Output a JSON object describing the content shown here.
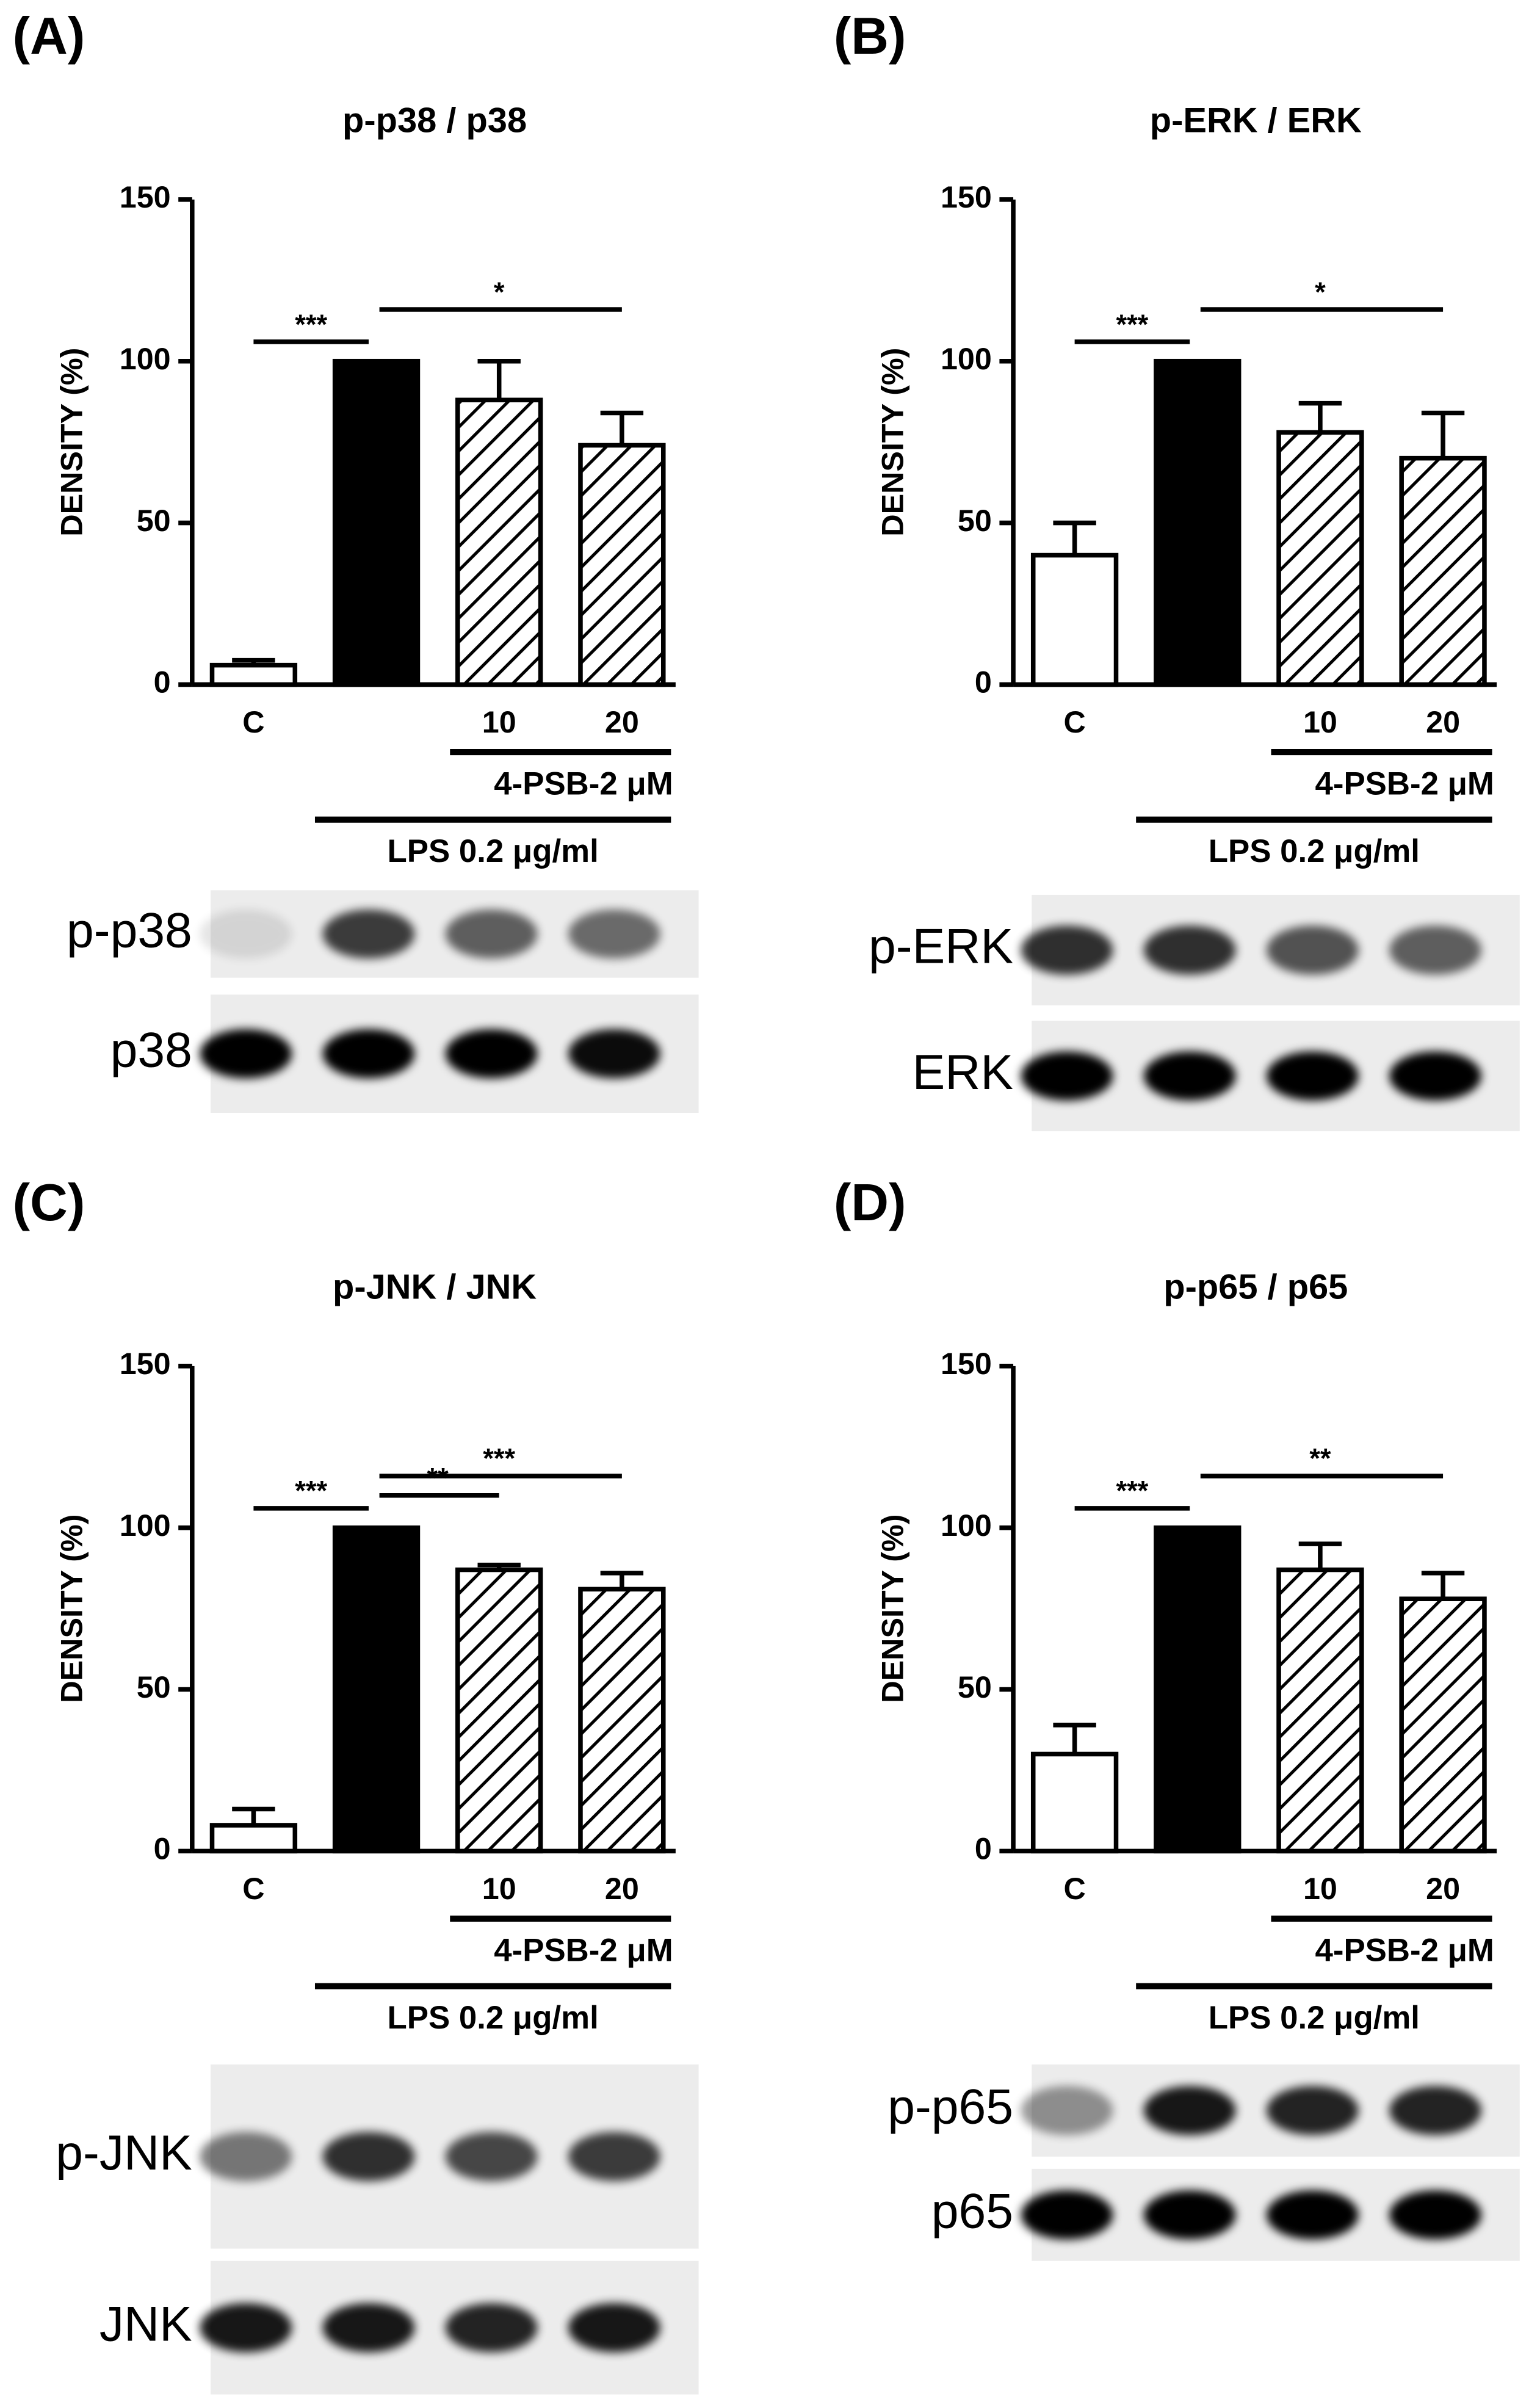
{
  "chart_data": [
    {
      "type": "bar",
      "panel": "(A)",
      "title": "p-p38 / p38",
      "ylabel": "DENSITY (%)",
      "categories": [
        "C",
        null,
        "10",
        "20"
      ],
      "values": [
        6,
        100,
        88,
        74
      ],
      "errors": [
        1.5,
        null,
        12,
        10
      ],
      "bar_styles": [
        "open",
        "solid",
        "hatch",
        "hatch"
      ],
      "ylim": [
        0,
        150
      ],
      "yticks": [
        0,
        50,
        100,
        150
      ],
      "groups": [
        {
          "label": "4-PSB-2 μM",
          "from": 2,
          "to": 3
        },
        {
          "label": "LPS 0.2 μg/ml",
          "from": 1,
          "to": 3
        }
      ],
      "annotations": [
        {
          "text": "***",
          "from": 0,
          "to": 1
        },
        {
          "text": "*",
          "from": 1,
          "to": 3
        }
      ],
      "blots": [
        "p-p38",
        "p38"
      ]
    },
    {
      "type": "bar",
      "panel": "(B)",
      "title": "p-ERK / ERK",
      "ylabel": "DENSITY (%)",
      "categories": [
        "C",
        null,
        "10",
        "20"
      ],
      "values": [
        40,
        100,
        78,
        70
      ],
      "errors": [
        10,
        null,
        9,
        14
      ],
      "bar_styles": [
        "open",
        "solid",
        "hatch",
        "hatch"
      ],
      "ylim": [
        0,
        150
      ],
      "yticks": [
        0,
        50,
        100,
        150
      ],
      "groups": [
        {
          "label": "4-PSB-2 μM",
          "from": 2,
          "to": 3
        },
        {
          "label": "LPS 0.2 μg/ml",
          "from": 1,
          "to": 3
        }
      ],
      "annotations": [
        {
          "text": "***",
          "from": 0,
          "to": 1
        },
        {
          "text": "*",
          "from": 1,
          "to": 3
        }
      ],
      "blots": [
        "p-ERK",
        "ERK"
      ]
    },
    {
      "type": "bar",
      "panel": "(C)",
      "title": "p-JNK / JNK",
      "ylabel": "DENSITY (%)",
      "categories": [
        "C",
        null,
        "10",
        "20"
      ],
      "values": [
        8,
        100,
        87,
        81
      ],
      "errors": [
        5,
        null,
        1.5,
        5
      ],
      "bar_styles": [
        "open",
        "solid",
        "hatch",
        "hatch"
      ],
      "ylim": [
        0,
        150
      ],
      "yticks": [
        0,
        50,
        100,
        150
      ],
      "groups": [
        {
          "label": "4-PSB-2 μM",
          "from": 2,
          "to": 3
        },
        {
          "label": "LPS 0.2 μg/ml",
          "from": 1,
          "to": 3
        }
      ],
      "annotations": [
        {
          "text": "***",
          "from": 0,
          "to": 1
        },
        {
          "text": "**",
          "from": 1,
          "to": 2
        },
        {
          "text": "***",
          "from": 1,
          "to": 3
        }
      ],
      "blots": [
        "p-JNK",
        "JNK"
      ]
    },
    {
      "type": "bar",
      "panel": "(D)",
      "title": "p-p65 / p65",
      "ylabel": "DENSITY (%)",
      "categories": [
        "C",
        null,
        "10",
        "20"
      ],
      "values": [
        30,
        100,
        87,
        78
      ],
      "errors": [
        9,
        null,
        8,
        8
      ],
      "bar_styles": [
        "open",
        "solid",
        "hatch",
        "hatch"
      ],
      "ylim": [
        0,
        150
      ],
      "yticks": [
        0,
        50,
        100,
        150
      ],
      "groups": [
        {
          "label": "4-PSB-2 μM",
          "from": 2,
          "to": 3
        },
        {
          "label": "LPS 0.2 μg/ml",
          "from": 1,
          "to": 3
        }
      ],
      "annotations": [
        {
          "text": "***",
          "from": 0,
          "to": 1
        },
        {
          "text": "**",
          "from": 1,
          "to": 3
        }
      ],
      "blots": [
        "p-p65",
        "p65"
      ]
    }
  ]
}
